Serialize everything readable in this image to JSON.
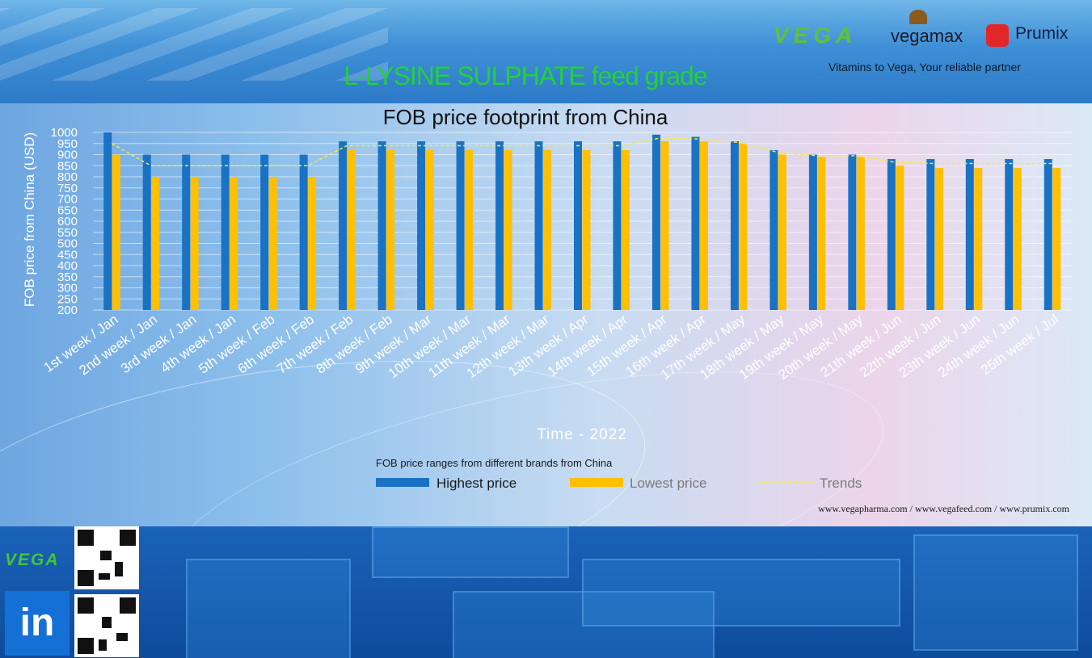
{
  "header": {
    "main_title": "L-LYSINE  SULPHATE feed grade",
    "brands": {
      "vega": "VEGA",
      "vegamax": "vegamax",
      "prumix": "Prumix"
    },
    "tagline": "Vitamins to Vega, Your reliable partner"
  },
  "footer": {
    "brand": "VEGA",
    "linkedin": "in",
    "websites": "www.vegapharma.com / www.vegafeed.com / www.prumix.com"
  },
  "colors": {
    "highest": "#1a72c4",
    "lowest": "#ffc000",
    "trend": "#f5ee2a",
    "title_green": "#22d13a"
  },
  "chart_data": {
    "type": "bar",
    "title": "FOB price footprint from China",
    "xlabel": "Time - 2022",
    "ylabel": "FOB price from China (USD)",
    "ylim": [
      200,
      1000
    ],
    "yticks": [
      1000,
      950,
      900,
      850,
      800,
      750,
      700,
      650,
      600,
      550,
      500,
      450,
      400,
      350,
      300,
      250,
      200
    ],
    "grid": true,
    "legend_title": "FOB price ranges from different brands from China",
    "legend_placement": "bottom",
    "categories": [
      "1st week / Jan",
      "2nd week / Jan",
      "3rd week / Jan",
      "4th week / Jan",
      "5th week / Feb",
      "6th week / Feb",
      "7th week / Feb",
      "8th week / Feb",
      "9th week / Mar",
      "10th week / Mar",
      "11th week / Mar",
      "12th week / Mar",
      "13th week / Apr",
      "14th week / Apr",
      "15th week / Apr",
      "16th week / Apr",
      "17th week / May",
      "18th week / May",
      "19th week / May",
      "20th week / May",
      "21th week / Jun",
      "22th week / Jun",
      "23th week / Jun",
      "24th week / Jun",
      "25th week / Jul"
    ],
    "series": [
      {
        "name": "Highest price",
        "kind": "bar",
        "values": [
          1000,
          900,
          900,
          900,
          900,
          900,
          960,
          960,
          960,
          960,
          960,
          960,
          960,
          960,
          990,
          980,
          960,
          920,
          900,
          900,
          880,
          880,
          880,
          880,
          880
        ]
      },
      {
        "name": "Lowest price",
        "kind": "bar",
        "values": [
          900,
          800,
          800,
          800,
          800,
          800,
          920,
          920,
          920,
          920,
          920,
          920,
          920,
          920,
          960,
          960,
          950,
          900,
          890,
          890,
          850,
          840,
          840,
          840,
          840
        ]
      },
      {
        "name": "Trends",
        "kind": "line",
        "values": [
          950,
          850,
          850,
          850,
          850,
          850,
          940,
          940,
          940,
          940,
          940,
          940,
          940,
          940,
          975,
          970,
          955,
          910,
          895,
          895,
          865,
          860,
          860,
          860,
          860
        ]
      }
    ]
  }
}
